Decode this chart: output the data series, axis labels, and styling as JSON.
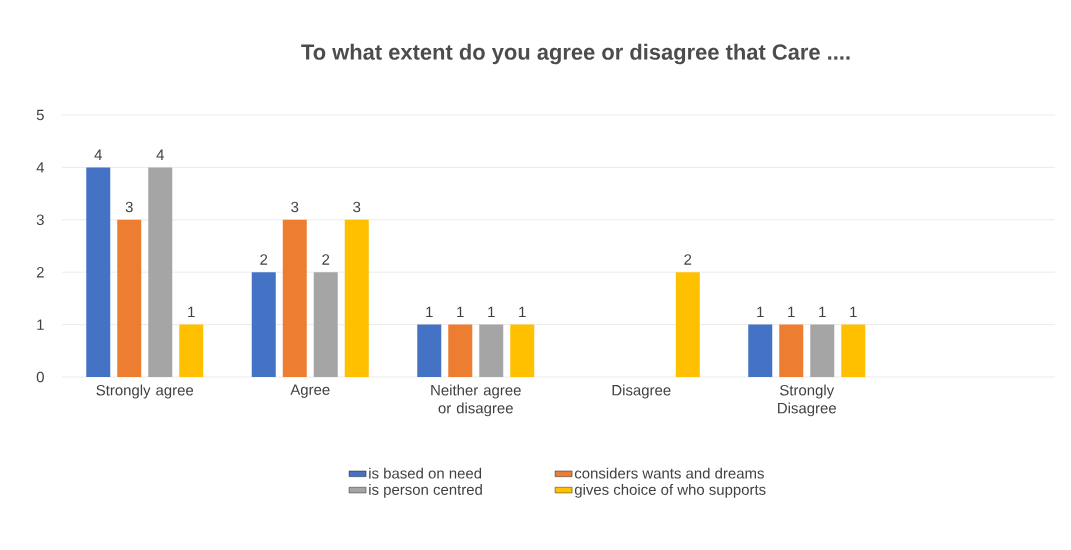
{
  "chart_data": {
    "type": "bar",
    "title": "To what extent do you agree or disagree that Care ....",
    "categories": [
      "Strongly agree",
      "Agree",
      "Neither agree or disagree",
      "Disagree",
      "Strongly Disagree",
      null
    ],
    "series": [
      {
        "name": "is based on need",
        "color": "#4472c4",
        "values": [
          4,
          2,
          1,
          null,
          1,
          null
        ]
      },
      {
        "name": "considers wants and dreams",
        "color": "#ed7d31",
        "values": [
          3,
          3,
          1,
          null,
          1,
          null
        ]
      },
      {
        "name": "is person centred",
        "color": "#a5a5a5",
        "values": [
          4,
          2,
          1,
          null,
          1,
          null
        ]
      },
      {
        "name": "gives choice of who supports",
        "color": "#ffc000",
        "values": [
          1,
          3,
          1,
          2,
          1,
          null
        ]
      }
    ],
    "ylim": [
      0,
      5
    ],
    "yticks": [
      0,
      1,
      2,
      3,
      4,
      5
    ],
    "grid": "y",
    "legend": "bottom",
    "data_labels": true
  }
}
